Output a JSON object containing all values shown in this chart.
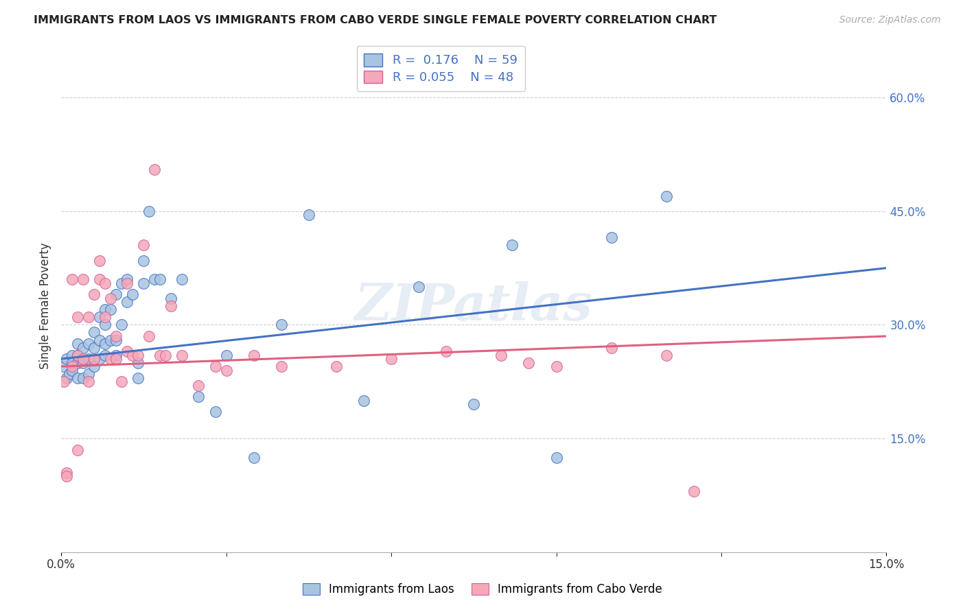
{
  "title": "IMMIGRANTS FROM LAOS VS IMMIGRANTS FROM CABO VERDE SINGLE FEMALE POVERTY CORRELATION CHART",
  "source": "Source: ZipAtlas.com",
  "ylabel": "Single Female Poverty",
  "xlim": [
    0.0,
    0.15
  ],
  "ylim": [
    0.0,
    0.65
  ],
  "ytick_positions": [
    0.15,
    0.3,
    0.45,
    0.6
  ],
  "ytick_labels": [
    "15.0%",
    "30.0%",
    "45.0%",
    "60.0%"
  ],
  "blue_color": "#a8c4e0",
  "pink_color": "#f4a8b8",
  "blue_line_color": "#4472c4",
  "pink_line_color": "#e06080",
  "watermark": "ZIPatlas",
  "legend_r_blue": "0.176",
  "legend_n_blue": "59",
  "legend_r_pink": "0.055",
  "legend_n_pink": "48",
  "blue_scatter_x": [
    0.0005,
    0.001,
    0.001,
    0.0015,
    0.002,
    0.002,
    0.002,
    0.003,
    0.003,
    0.003,
    0.003,
    0.004,
    0.004,
    0.004,
    0.005,
    0.005,
    0.005,
    0.006,
    0.006,
    0.006,
    0.007,
    0.007,
    0.007,
    0.008,
    0.008,
    0.008,
    0.008,
    0.009,
    0.009,
    0.01,
    0.01,
    0.01,
    0.011,
    0.011,
    0.012,
    0.012,
    0.013,
    0.014,
    0.014,
    0.015,
    0.015,
    0.016,
    0.017,
    0.018,
    0.02,
    0.022,
    0.025,
    0.028,
    0.03,
    0.035,
    0.04,
    0.045,
    0.055,
    0.065,
    0.075,
    0.082,
    0.09,
    0.1,
    0.11
  ],
  "blue_scatter_y": [
    0.245,
    0.23,
    0.255,
    0.235,
    0.24,
    0.26,
    0.25,
    0.23,
    0.25,
    0.26,
    0.275,
    0.23,
    0.25,
    0.27,
    0.235,
    0.255,
    0.275,
    0.245,
    0.27,
    0.29,
    0.255,
    0.28,
    0.31,
    0.26,
    0.275,
    0.3,
    0.32,
    0.28,
    0.32,
    0.26,
    0.28,
    0.34,
    0.3,
    0.355,
    0.33,
    0.36,
    0.34,
    0.23,
    0.25,
    0.355,
    0.385,
    0.45,
    0.36,
    0.36,
    0.335,
    0.36,
    0.205,
    0.185,
    0.26,
    0.125,
    0.3,
    0.445,
    0.2,
    0.35,
    0.195,
    0.405,
    0.125,
    0.415,
    0.47
  ],
  "pink_scatter_x": [
    0.0005,
    0.001,
    0.001,
    0.002,
    0.002,
    0.003,
    0.003,
    0.003,
    0.004,
    0.004,
    0.005,
    0.005,
    0.006,
    0.006,
    0.007,
    0.007,
    0.008,
    0.008,
    0.009,
    0.009,
    0.01,
    0.01,
    0.011,
    0.012,
    0.012,
    0.013,
    0.014,
    0.015,
    0.016,
    0.017,
    0.018,
    0.019,
    0.02,
    0.022,
    0.025,
    0.028,
    0.03,
    0.035,
    0.04,
    0.05,
    0.06,
    0.07,
    0.08,
    0.085,
    0.09,
    0.1,
    0.11,
    0.115
  ],
  "pink_scatter_y": [
    0.225,
    0.105,
    0.1,
    0.36,
    0.245,
    0.135,
    0.31,
    0.26,
    0.255,
    0.36,
    0.225,
    0.31,
    0.255,
    0.34,
    0.36,
    0.385,
    0.31,
    0.355,
    0.255,
    0.335,
    0.255,
    0.285,
    0.225,
    0.265,
    0.355,
    0.26,
    0.26,
    0.405,
    0.285,
    0.505,
    0.26,
    0.26,
    0.325,
    0.26,
    0.22,
    0.245,
    0.24,
    0.26,
    0.245,
    0.245,
    0.255,
    0.265,
    0.26,
    0.25,
    0.245,
    0.27,
    0.26,
    0.08
  ]
}
